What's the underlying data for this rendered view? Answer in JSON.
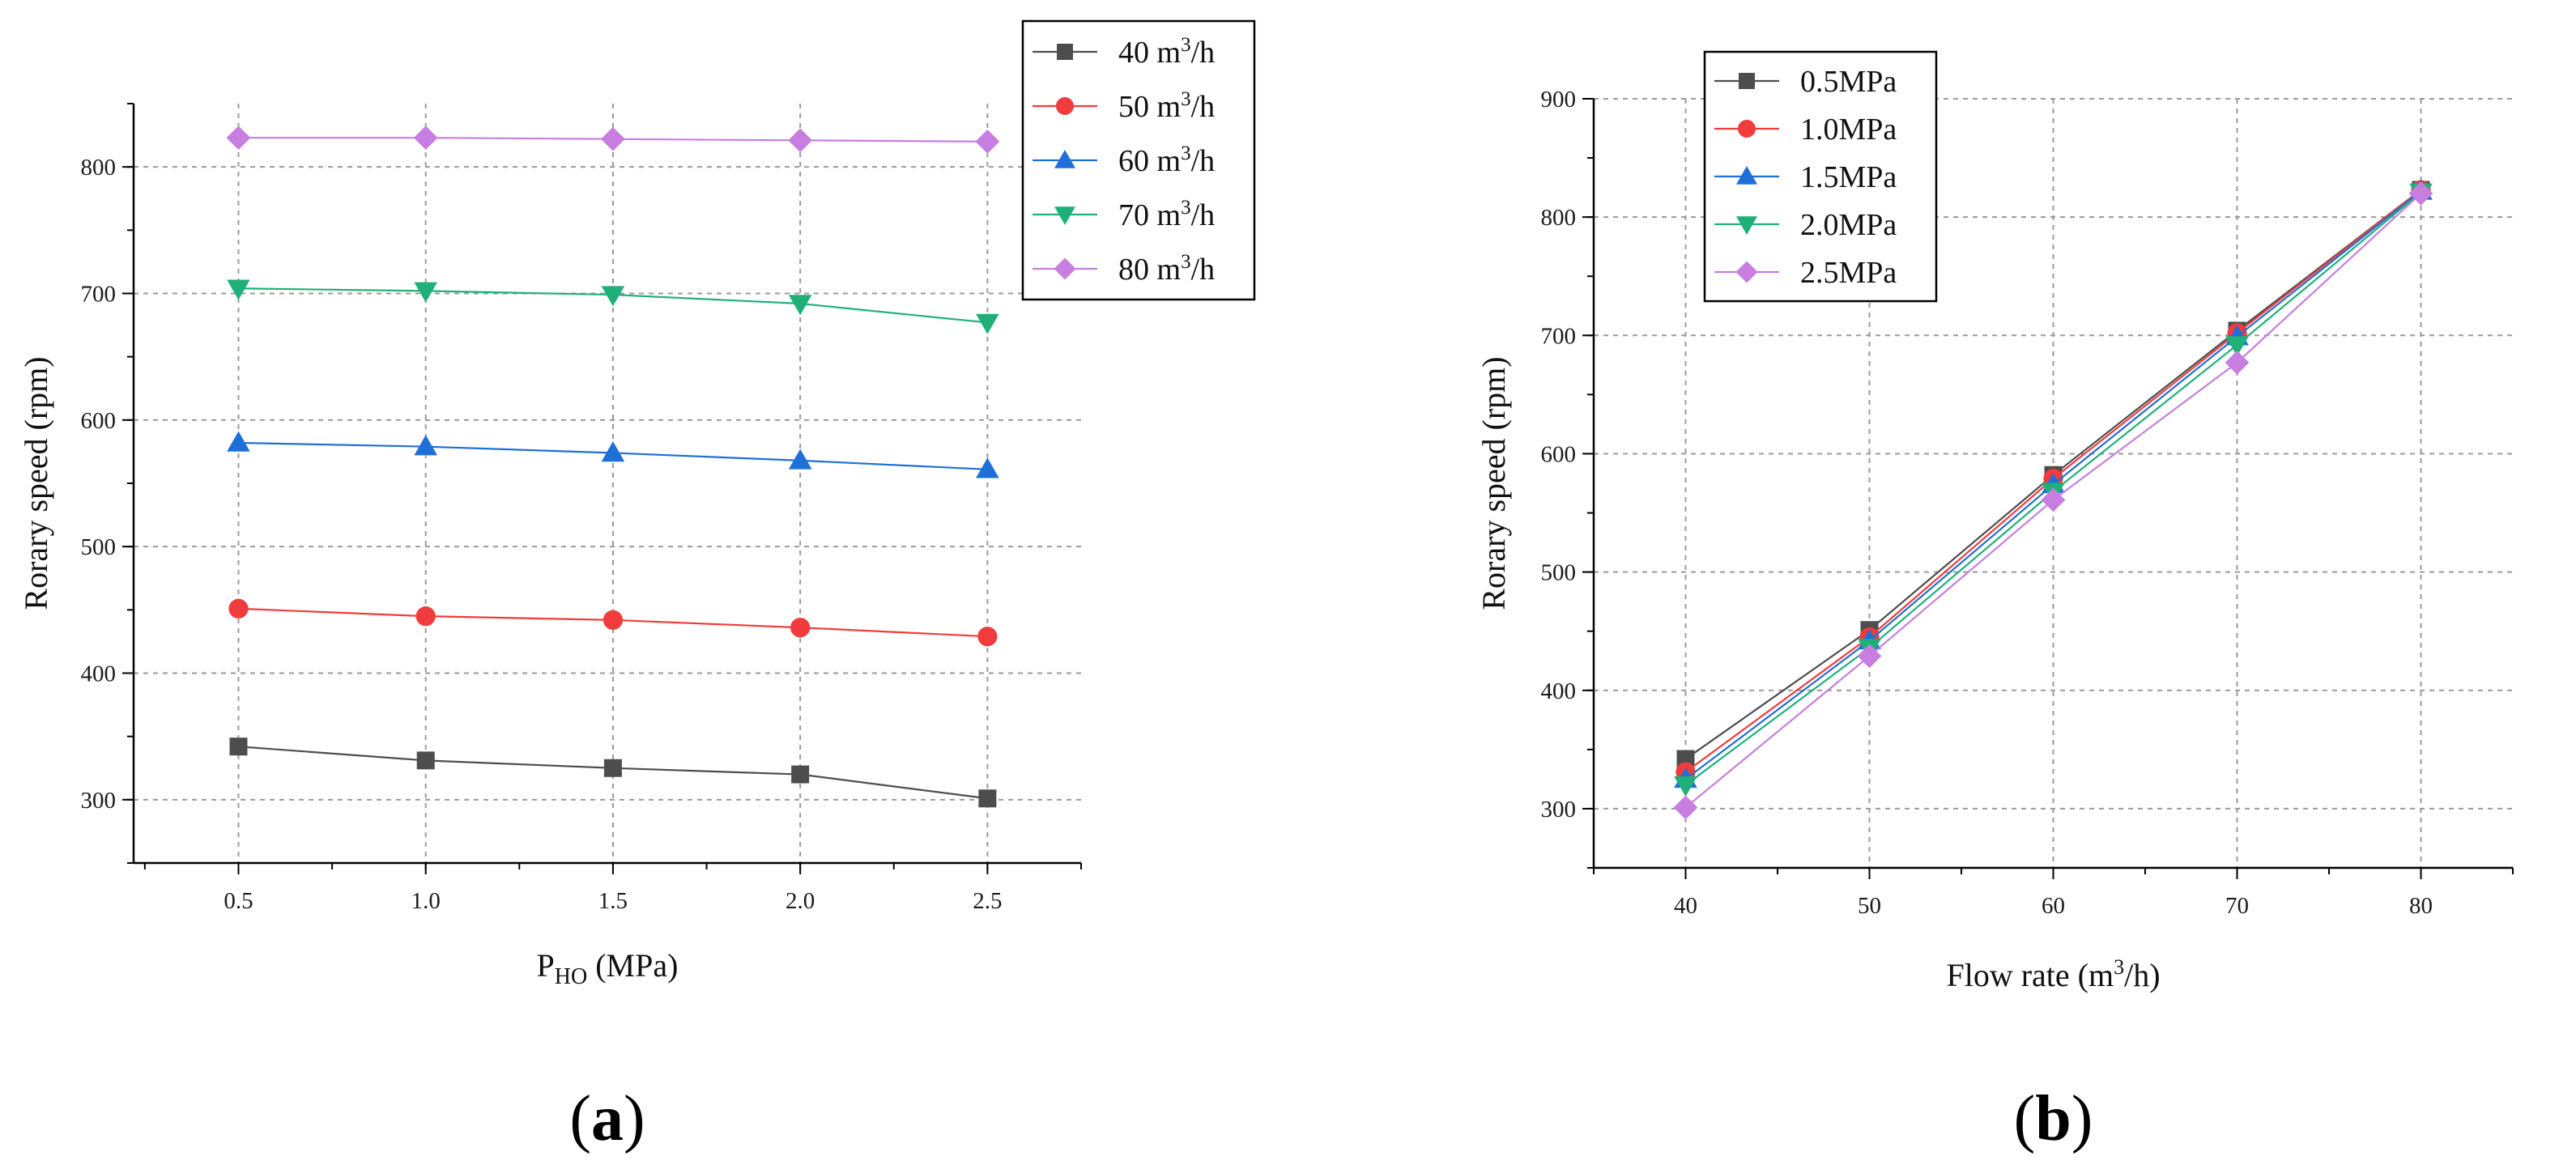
{
  "chart_data": [
    {
      "type": "line",
      "panel_label": "a",
      "title": "",
      "xlabel": "P",
      "xlabel_sub": "HO",
      "xlabel_unit": " (MPa)",
      "ylabel": "Rorary speed (rpm)",
      "x": [
        0.5,
        1.0,
        1.5,
        2.0,
        2.5
      ],
      "x_tick_labels": [
        "0.5",
        "1.0",
        "1.5",
        "2.0",
        "2.5"
      ],
      "xlim": [
        0.22,
        2.75
      ],
      "ylim": [
        250,
        850
      ],
      "y_ticks": [
        300,
        400,
        500,
        600,
        700,
        800
      ],
      "y_tick_labels": [
        "300",
        "400",
        "500",
        "600",
        "700",
        "800"
      ],
      "grid": true,
      "legend_position": "top-right",
      "series": [
        {
          "name": "40 m",
          "unit_sup": "3",
          "unit_tail": "/h",
          "marker": "square",
          "color": "#4d4d4d",
          "values": [
            342,
            331,
            325,
            320,
            301
          ]
        },
        {
          "name": "50 m",
          "unit_sup": "3",
          "unit_tail": "/h",
          "marker": "circle",
          "color": "#f03c3c",
          "values": [
            451,
            445,
            442,
            436,
            429
          ]
        },
        {
          "name": "60 m",
          "unit_sup": "3",
          "unit_tail": "/h",
          "marker": "triangle-up",
          "color": "#1f6fd8",
          "values": [
            582,
            579,
            574,
            568,
            561
          ]
        },
        {
          "name": "70 m",
          "unit_sup": "3",
          "unit_tail": "/h",
          "marker": "triangle-down",
          "color": "#1fb07a",
          "values": [
            704,
            702,
            699,
            692,
            677
          ]
        },
        {
          "name": "80 m",
          "unit_sup": "3",
          "unit_tail": "/h",
          "marker": "diamond",
          "color": "#c77ee0",
          "values": [
            823,
            823,
            822,
            821,
            820
          ]
        }
      ]
    },
    {
      "type": "line",
      "panel_label": "b",
      "title": "",
      "xlabel": "Flow rate (m",
      "xlabel_sup": "3",
      "xlabel_tail": "/h)",
      "ylabel": "Rorary speed (rpm)",
      "x": [
        40,
        50,
        60,
        70,
        80
      ],
      "x_tick_labels": [
        "40",
        "50",
        "60",
        "70",
        "80"
      ],
      "xlim": [
        35,
        85
      ],
      "ylim": [
        250,
        900
      ],
      "y_ticks": [
        300,
        400,
        500,
        600,
        700,
        800,
        900
      ],
      "y_tick_labels": [
        "300",
        "400",
        "500",
        "600",
        "700",
        "800",
        "900"
      ],
      "grid": true,
      "legend_position": "top-left",
      "series": [
        {
          "name": "0.5MPa",
          "marker": "square",
          "color": "#4d4d4d",
          "values": [
            342,
            451,
            582,
            704,
            823
          ]
        },
        {
          "name": "1.0MPa",
          "marker": "circle",
          "color": "#f03c3c",
          "values": [
            331,
            445,
            579,
            702,
            823
          ]
        },
        {
          "name": "1.5MPa",
          "marker": "triangle-up",
          "color": "#1f6fd8",
          "values": [
            325,
            442,
            574,
            699,
            822
          ]
        },
        {
          "name": "2.0MPa",
          "marker": "triangle-down",
          "color": "#1fb07a",
          "values": [
            320,
            436,
            568,
            692,
            821
          ]
        },
        {
          "name": "2.5MPa",
          "marker": "diamond",
          "color": "#c77ee0",
          "values": [
            301,
            429,
            561,
            677,
            820
          ]
        }
      ]
    }
  ]
}
